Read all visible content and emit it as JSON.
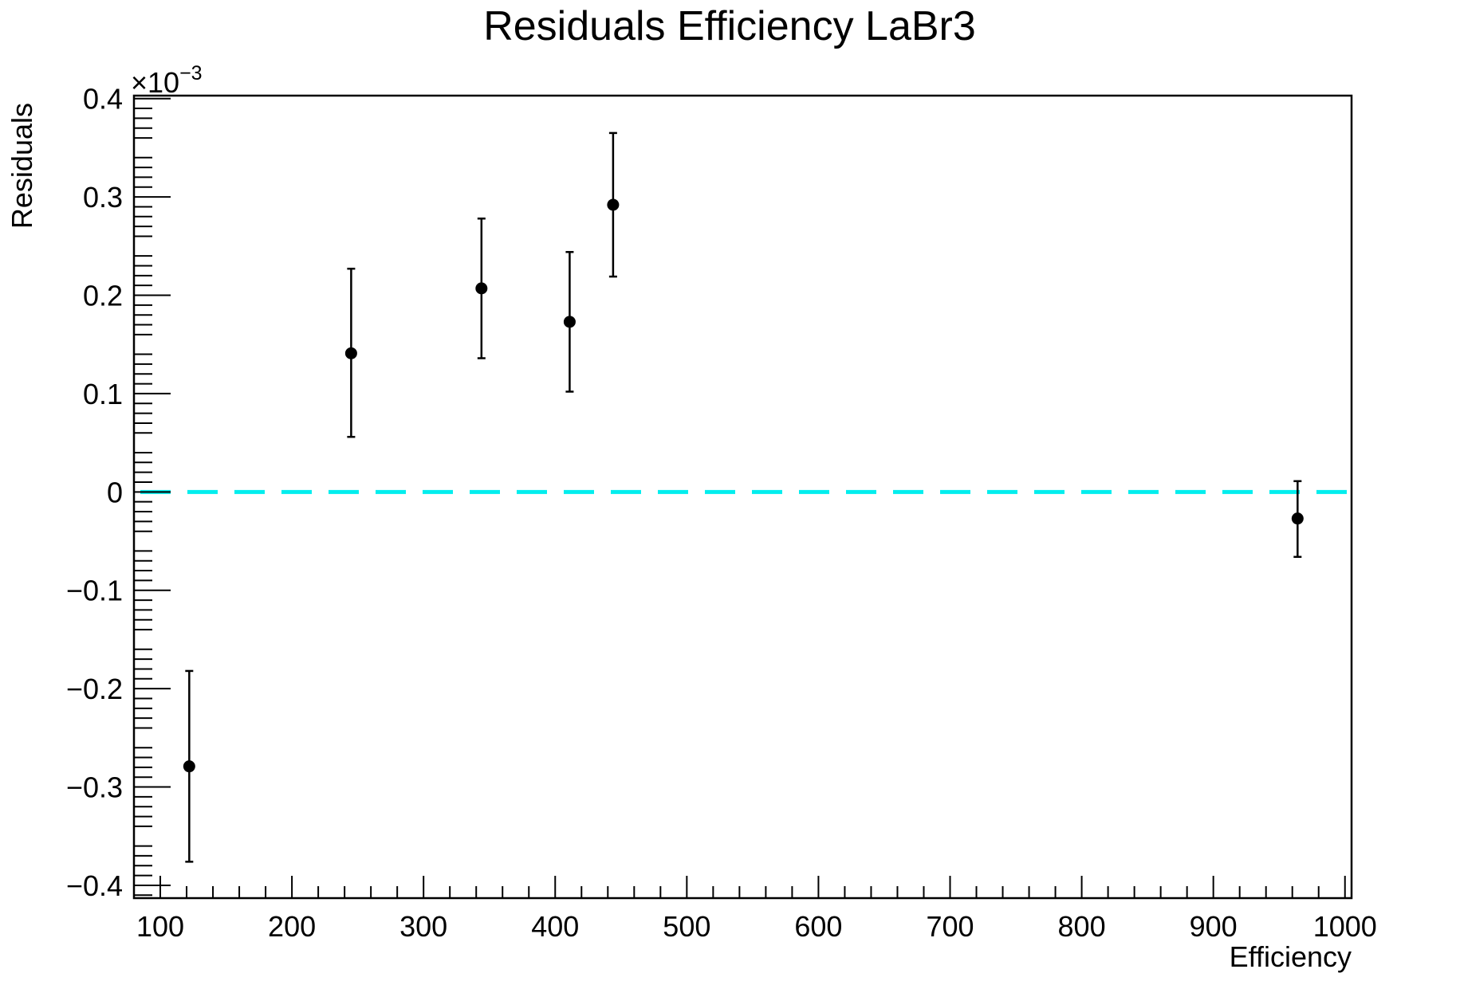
{
  "chart_data": {
    "type": "scatter",
    "title": "Residuals Efficiency LaBr3",
    "xlabel": "Efficiency",
    "ylabel": "Residuals",
    "y_multiplier": "×10",
    "y_multiplier_exp": "−3",
    "xlim": [
      80,
      1005
    ],
    "ylim": [
      -0.413,
      0.403
    ],
    "x_ticks": [
      100,
      200,
      300,
      400,
      500,
      600,
      700,
      800,
      900,
      1000
    ],
    "x_tick_labels": [
      "100",
      "200",
      "300",
      "400",
      "500",
      "600",
      "700",
      "800",
      "900",
      "1000"
    ],
    "y_ticks": [
      -0.4,
      -0.3,
      -0.2,
      -0.1,
      0,
      0.1,
      0.2,
      0.3,
      0.4
    ],
    "y_tick_labels": [
      "−0.4",
      "−0.3",
      "−0.2",
      "−0.1",
      "0",
      "0.1",
      "0.2",
      "0.3",
      "0.4"
    ],
    "grid": false,
    "reference_line": {
      "y": 0,
      "style": "dashed",
      "color": "#00eeee"
    },
    "series": [
      {
        "marker_color": "#000000",
        "points": [
          {
            "x": 122,
            "y": -0.279,
            "err_low": 0.097,
            "err_high": 0.097
          },
          {
            "x": 245,
            "y": 0.141,
            "err_low": 0.085,
            "err_high": 0.086
          },
          {
            "x": 344,
            "y": 0.207,
            "err_low": 0.071,
            "err_high": 0.071
          },
          {
            "x": 411,
            "y": 0.173,
            "err_low": 0.071,
            "err_high": 0.071
          },
          {
            "x": 444,
            "y": 0.292,
            "err_low": 0.073,
            "err_high": 0.073
          },
          {
            "x": 964,
            "y": -0.027,
            "err_low": 0.039,
            "err_high": 0.038
          }
        ]
      }
    ]
  }
}
